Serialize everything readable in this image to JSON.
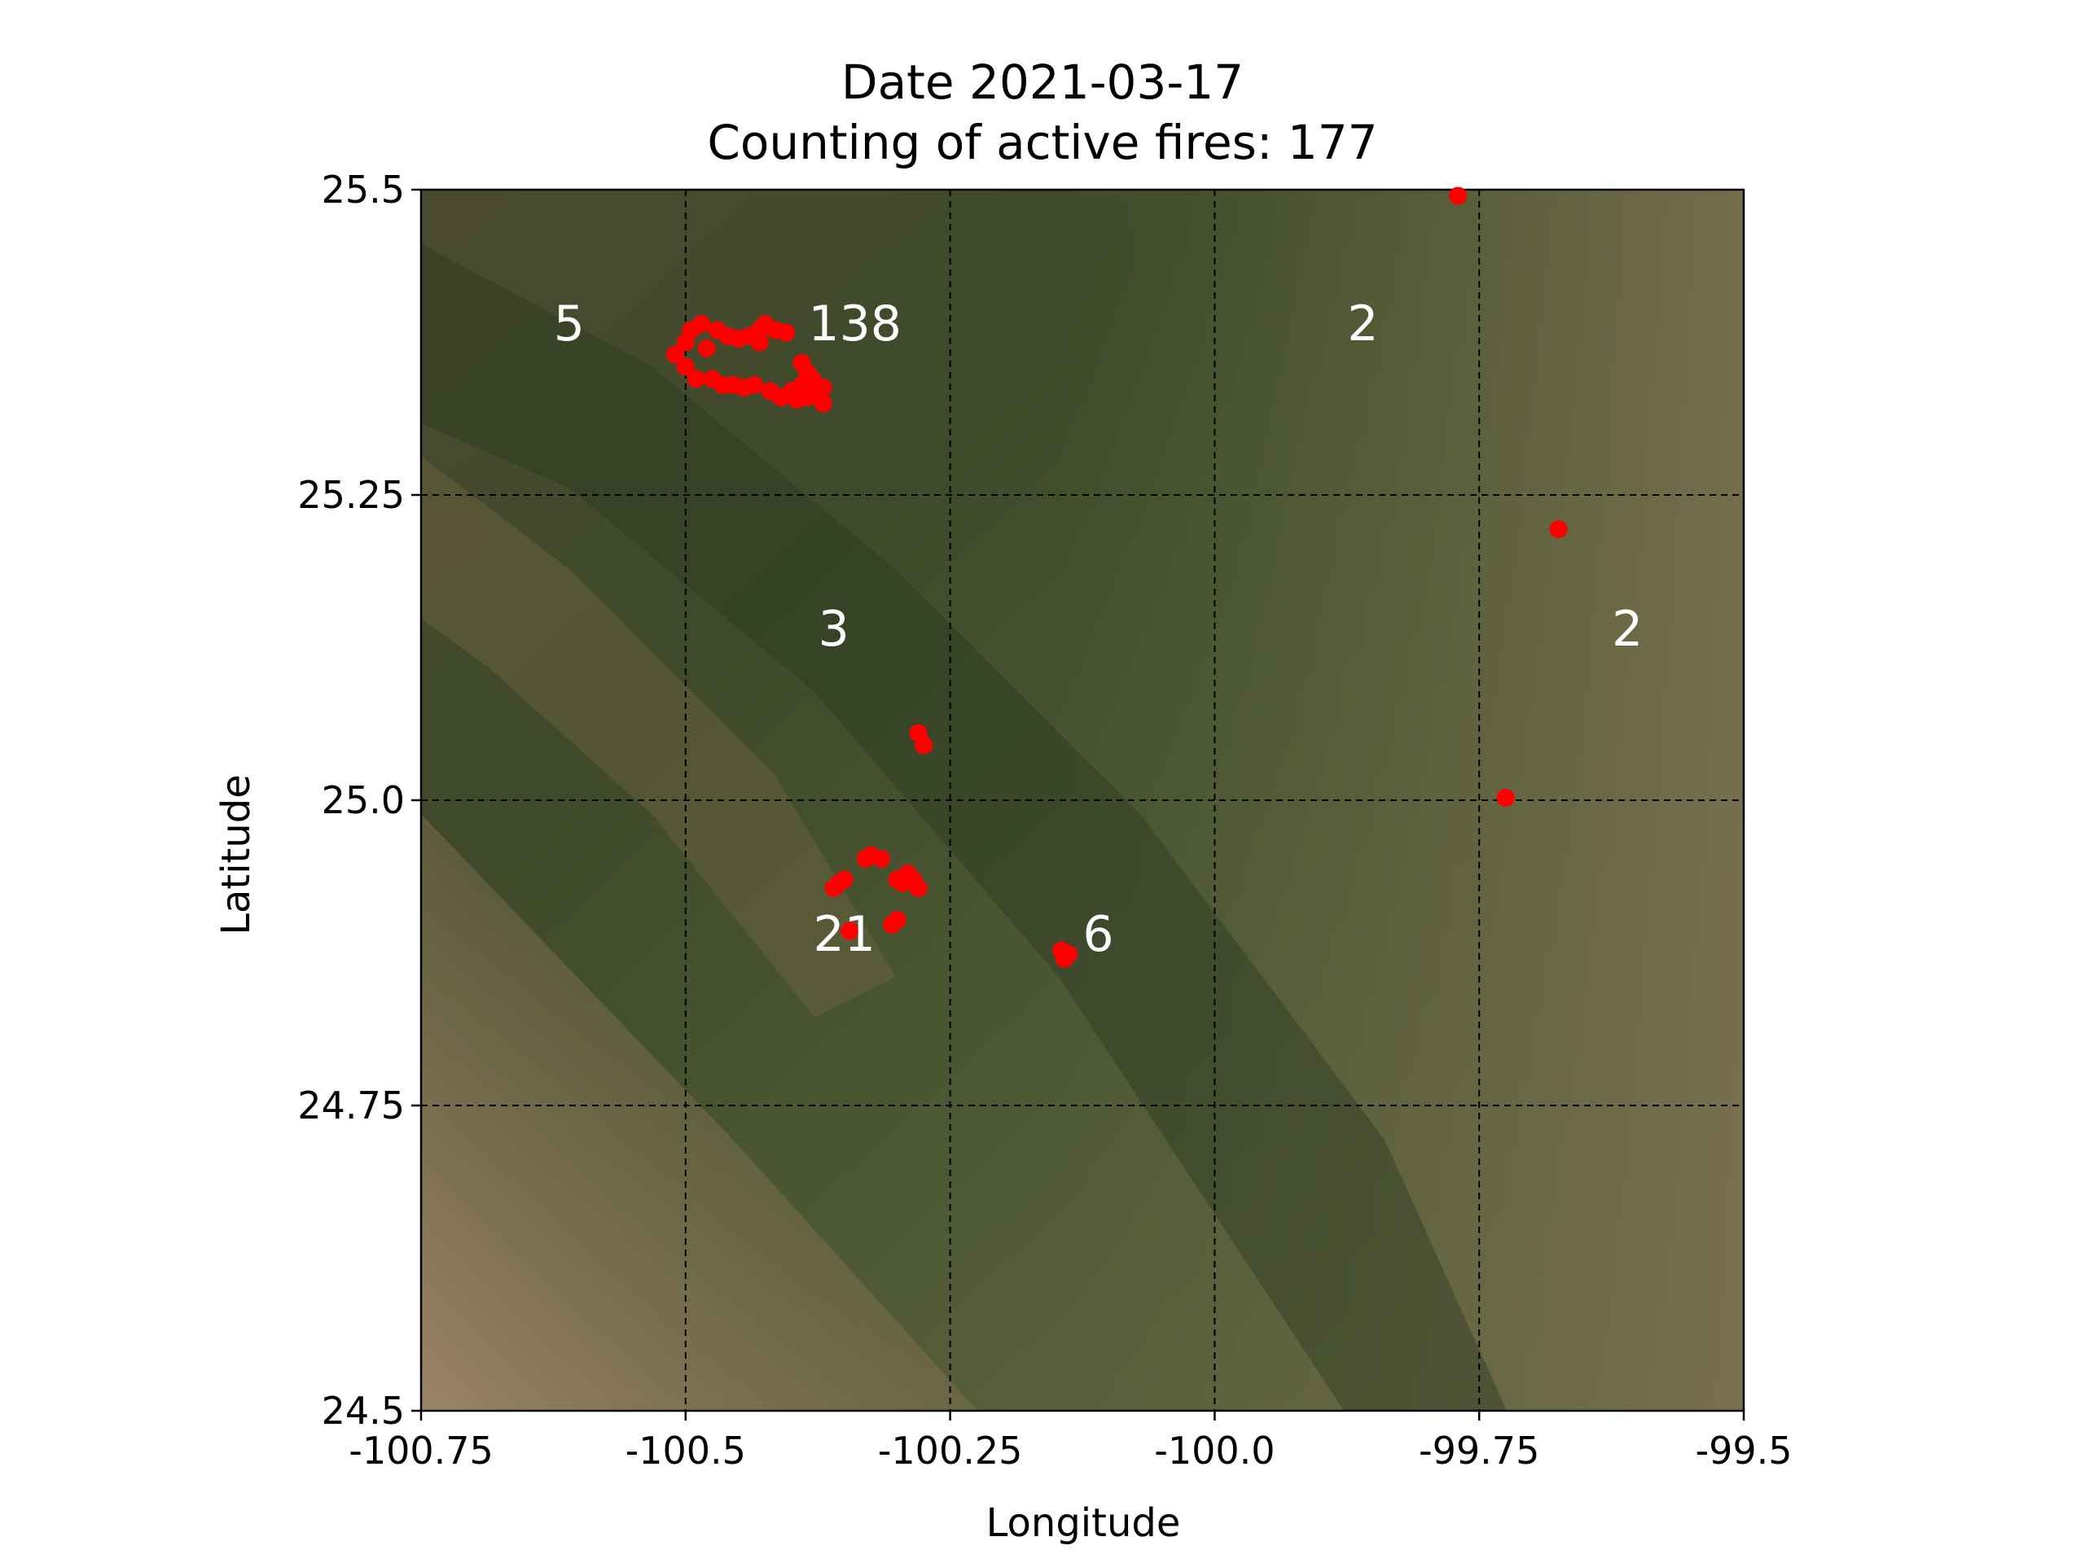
{
  "title": "Date 2021-03-17",
  "subtitle": "Counting of active fires: 177",
  "xlabel": "Longitude",
  "ylabel": "Latitude",
  "colors": {
    "fire_points": "#ff0000",
    "cluster_labels": "#ffffff",
    "grid": "#000000",
    "basemap_dark": "#3d4a2a",
    "basemap_light": "#8a7656"
  },
  "chart_data": {
    "type": "scatter",
    "xlim": [
      -100.75,
      -99.5
    ],
    "ylim": [
      24.5,
      25.5
    ],
    "x_ticks": [
      -100.75,
      -100.5,
      -100.25,
      -100.0,
      -99.75,
      -99.5
    ],
    "x_tick_labels": [
      "-100.75",
      "-100.5",
      "-100.25",
      "-100.0",
      "-99.75",
      "-99.5"
    ],
    "y_ticks": [
      24.5,
      24.75,
      25.0,
      25.25,
      25.5
    ],
    "y_tick_labels": [
      "24.5",
      "24.75",
      "25.0",
      "25.25",
      "25.5"
    ],
    "grid": true,
    "basemap": "satellite imagery",
    "cluster_counts": [
      {
        "label": "5",
        "lon": -100.61,
        "lat": 25.39
      },
      {
        "label": "138",
        "lon": -100.34,
        "lat": 25.39
      },
      {
        "label": "2",
        "lon": -99.86,
        "lat": 25.39
      },
      {
        "label": "3",
        "lon": -100.36,
        "lat": 25.14
      },
      {
        "label": "2",
        "lon": -99.61,
        "lat": 25.14
      },
      {
        "label": "21",
        "lon": -100.35,
        "lat": 24.89
      },
      {
        "label": "6",
        "lon": -100.11,
        "lat": 24.89
      }
    ],
    "fire_points": [
      {
        "lon": -100.51,
        "lat": 25.365
      },
      {
        "lon": -100.5,
        "lat": 25.375
      },
      {
        "lon": -100.5,
        "lat": 25.355
      },
      {
        "lon": -100.495,
        "lat": 25.385
      },
      {
        "lon": -100.49,
        "lat": 25.345
      },
      {
        "lon": -100.485,
        "lat": 25.39
      },
      {
        "lon": -100.48,
        "lat": 25.37
      },
      {
        "lon": -100.475,
        "lat": 25.345
      },
      {
        "lon": -100.47,
        "lat": 25.385
      },
      {
        "lon": -100.465,
        "lat": 25.34
      },
      {
        "lon": -100.46,
        "lat": 25.38
      },
      {
        "lon": -100.455,
        "lat": 25.34
      },
      {
        "lon": -100.45,
        "lat": 25.378
      },
      {
        "lon": -100.445,
        "lat": 25.338
      },
      {
        "lon": -100.44,
        "lat": 25.38
      },
      {
        "lon": -100.435,
        "lat": 25.34
      },
      {
        "lon": -100.43,
        "lat": 25.385
      },
      {
        "lon": -100.43,
        "lat": 25.375
      },
      {
        "lon": -100.425,
        "lat": 25.39
      },
      {
        "lon": -100.42,
        "lat": 25.335
      },
      {
        "lon": -100.415,
        "lat": 25.385
      },
      {
        "lon": -100.41,
        "lat": 25.33
      },
      {
        "lon": -100.405,
        "lat": 25.383
      },
      {
        "lon": -100.4,
        "lat": 25.335
      },
      {
        "lon": -100.395,
        "lat": 25.328
      },
      {
        "lon": -100.39,
        "lat": 25.34
      },
      {
        "lon": -100.385,
        "lat": 25.33
      },
      {
        "lon": -100.385,
        "lat": 25.35
      },
      {
        "lon": -100.38,
        "lat": 25.345
      },
      {
        "lon": -100.375,
        "lat": 25.335
      },
      {
        "lon": -100.37,
        "lat": 25.338
      },
      {
        "lon": -100.37,
        "lat": 25.325
      },
      {
        "lon": -100.39,
        "lat": 25.358
      },
      {
        "lon": -100.28,
        "lat": 25.055
      },
      {
        "lon": -100.275,
        "lat": 25.045
      },
      {
        "lon": -100.36,
        "lat": 24.928
      },
      {
        "lon": -100.355,
        "lat": 24.932
      },
      {
        "lon": -100.35,
        "lat": 24.935
      },
      {
        "lon": -100.33,
        "lat": 24.952
      },
      {
        "lon": -100.325,
        "lat": 24.955
      },
      {
        "lon": -100.315,
        "lat": 24.952
      },
      {
        "lon": -100.3,
        "lat": 24.935
      },
      {
        "lon": -100.295,
        "lat": 24.932
      },
      {
        "lon": -100.29,
        "lat": 24.94
      },
      {
        "lon": -100.285,
        "lat": 24.935
      },
      {
        "lon": -100.28,
        "lat": 24.928
      },
      {
        "lon": -100.305,
        "lat": 24.898
      },
      {
        "lon": -100.3,
        "lat": 24.902
      },
      {
        "lon": -100.345,
        "lat": 24.893
      },
      {
        "lon": -100.145,
        "lat": 24.877
      },
      {
        "lon": -100.142,
        "lat": 24.87
      },
      {
        "lon": -100.138,
        "lat": 24.874
      },
      {
        "lon": -99.77,
        "lat": 25.495
      },
      {
        "lon": -99.675,
        "lat": 25.222
      },
      {
        "lon": -99.725,
        "lat": 25.002
      }
    ]
  }
}
